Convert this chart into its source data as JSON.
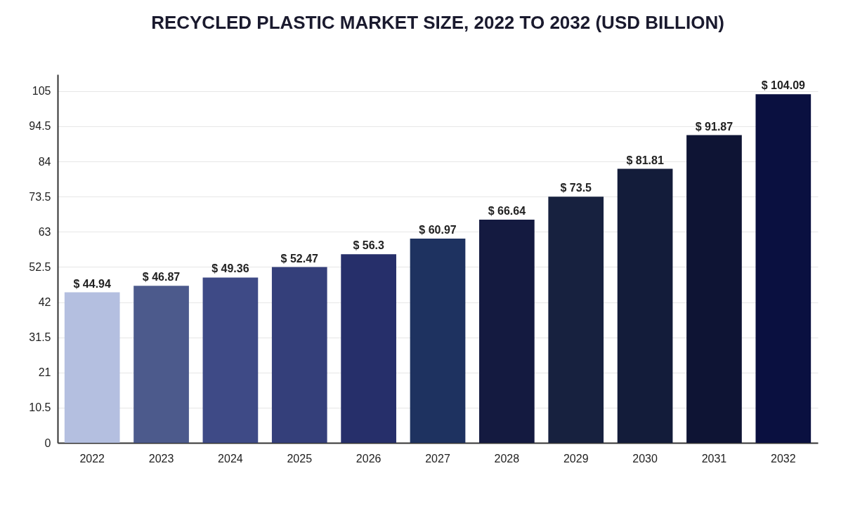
{
  "chart_data": {
    "type": "bar",
    "title": "RECYCLED PLASTIC MARKET SIZE, 2022 TO 2032 (USD BILLION)",
    "categories": [
      "2022",
      "2023",
      "2024",
      "2025",
      "2026",
      "2027",
      "2028",
      "2029",
      "2030",
      "2031",
      "2032"
    ],
    "values": [
      44.94,
      46.87,
      49.36,
      52.47,
      56.3,
      60.97,
      66.64,
      73.5,
      81.81,
      91.87,
      104.09
    ],
    "value_labels": [
      "$ 44.94",
      "$ 46.87",
      "$ 49.36",
      "$ 52.47",
      "$ 56.3",
      "$ 60.97",
      "$ 66.64",
      "$ 73.5",
      "$ 81.81",
      "$ 91.87",
      "$ 104.09"
    ],
    "colors": [
      "#b4bfe0",
      "#4c5a8c",
      "#3e4a86",
      "#343f7a",
      "#262f6a",
      "#1e3260",
      "#141a40",
      "#17213f",
      "#131c3a",
      "#0e1434",
      "#0a1040"
    ],
    "ylim": [
      0,
      110
    ],
    "yticks": [
      0,
      10.5,
      21,
      31.5,
      42,
      52.5,
      63,
      73.5,
      84,
      94.5,
      105
    ],
    "grid": "y"
  }
}
